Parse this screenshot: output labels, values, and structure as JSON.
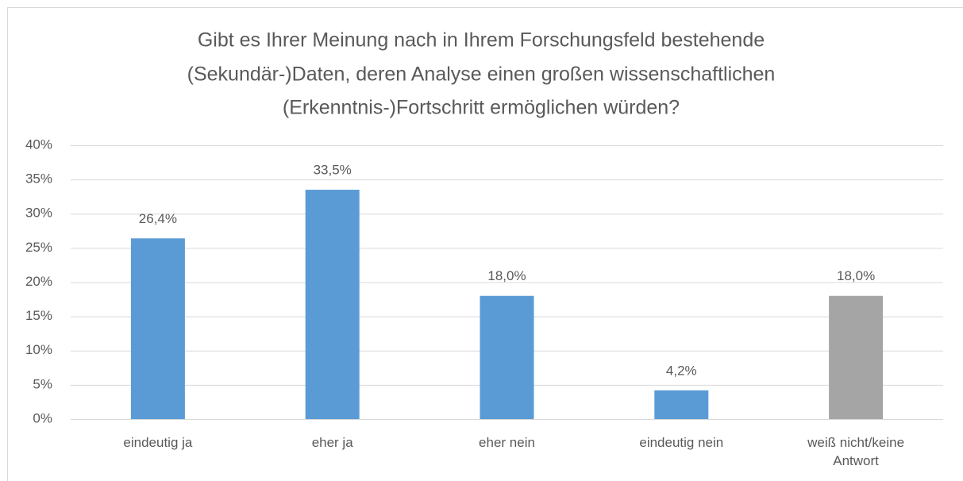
{
  "chart_data": {
    "type": "bar",
    "title": [
      "Gibt es Ihrer Meinung nach in Ihrem Forschungsfeld bestehende",
      "(Sekundär-)Daten, deren Analyse einen großen wissenschaftlichen",
      "(Erkenntnis-)Fortschritt ermöglichen würden?"
    ],
    "categories": [
      "eindeutig ja",
      "eher ja",
      "eher nein",
      "eindeutig nein",
      "weiß nicht/keine Antwort"
    ],
    "values": [
      26.4,
      33.5,
      18.0,
      4.2,
      18.0
    ],
    "value_labels": [
      "26,4%",
      "33,5%",
      "18,0%",
      "4,2%",
      "18,0%"
    ],
    "colors": [
      "#5b9bd5",
      "#5b9bd5",
      "#5b9bd5",
      "#5b9bd5",
      "#a5a5a5"
    ],
    "ylim": [
      0,
      40
    ],
    "yticks": [
      {
        "value": 0,
        "label": "0%"
      },
      {
        "value": 5,
        "label": "5%"
      },
      {
        "value": 10,
        "label": "10%"
      },
      {
        "value": 15,
        "label": "15%"
      },
      {
        "value": 20,
        "label": "20%"
      },
      {
        "value": 25,
        "label": "25%"
      },
      {
        "value": 30,
        "label": "30%"
      },
      {
        "value": 35,
        "label": "35%"
      },
      {
        "value": 40,
        "label": "40%"
      }
    ],
    "grid": true
  }
}
